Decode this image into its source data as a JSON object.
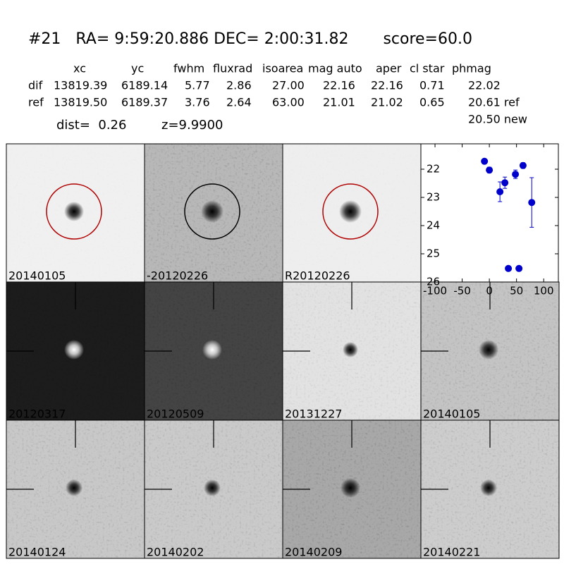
{
  "header": {
    "title": "#21   RA= 9:59:20.886 DEC= 2:00:31.82       score=60.0",
    "dist": "dist=  0.26",
    "z": "z=9.9900"
  },
  "table": {
    "columns": [
      "xc",
      "yc",
      "fwhm",
      "fluxrad",
      "isoarea",
      "mag auto",
      "aper",
      "cl star",
      "phmag"
    ],
    "rows": [
      [
        "dif",
        "13819.39",
        "6189.14",
        "5.77",
        "2.86",
        "27.00",
        "22.16",
        "22.16",
        "0.71",
        "22.02"
      ],
      [
        "ref",
        "13819.50",
        "6189.37",
        "3.76",
        "2.64",
        "63.00",
        "21.01",
        "21.02",
        "0.65",
        "20.61 ref"
      ]
    ],
    "note": "20.50 new"
  },
  "images": [
    {
      "label": "20140105"
    },
    {
      "label": "-20120226"
    },
    {
      "label": "R20120226"
    },
    {
      "label": "20120317"
    },
    {
      "label": "20120509"
    },
    {
      "label": "20131227"
    },
    {
      "label": "20140105"
    },
    {
      "label": "20140124"
    },
    {
      "label": "20140202"
    },
    {
      "label": "20140209"
    },
    {
      "label": "20140221"
    }
  ],
  "chart_data": {
    "type": "errorbar",
    "x": [
      -9,
      0,
      19.5,
      28.6,
      35,
      48,
      54.5,
      62,
      78
    ],
    "series": [
      {
        "color": "#0000cc",
        "values": [
          21.72,
          22.03,
          22.8,
          22.48,
          25.52,
          22.18,
          25.52,
          21.87,
          23.18
        ],
        "errors": [
          0.05,
          0.1,
          0.35,
          0.2,
          0.04,
          0.15,
          0.04,
          0.1,
          0.88
        ]
      }
    ],
    "xlim": [
      -126,
      127
    ],
    "ylim": [
      26,
      21.1
    ],
    "xticks": [
      -100,
      -50,
      0,
      50,
      100
    ],
    "yticks": [
      22,
      23,
      24,
      25,
      26
    ]
  }
}
